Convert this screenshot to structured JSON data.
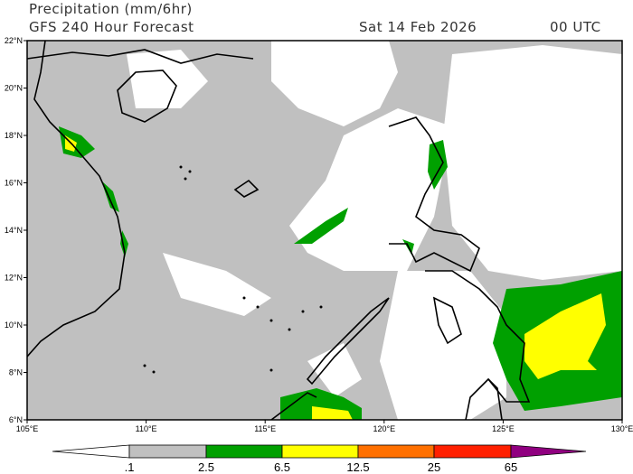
{
  "header": {
    "title": "Precipitation (mm/6hr)",
    "model": "GFS 240 Hour Forecast",
    "date": "Sat 14 Feb 2026",
    "time": "00 UTC"
  },
  "map": {
    "lon_range": [
      105,
      130
    ],
    "lat_range": [
      6,
      22
    ],
    "lon_labels": [
      "105°E",
      "110°E",
      "115°E",
      "120°E",
      "125°E",
      "130°E"
    ],
    "lat_labels": [
      "22°N",
      "20°N",
      "18°N",
      "16°N",
      "14°N",
      "12°N",
      "10°N",
      "8°N",
      "6°N"
    ]
  },
  "colorbar": {
    "labels": [
      ".1",
      "2.5",
      "6.5",
      "12.5",
      "25",
      "65"
    ],
    "colors": [
      "#ffffff",
      "#c0c0c0",
      "#00a000",
      "#ffff00",
      "#ff7000",
      "#ff2000",
      "#900080"
    ]
  }
}
